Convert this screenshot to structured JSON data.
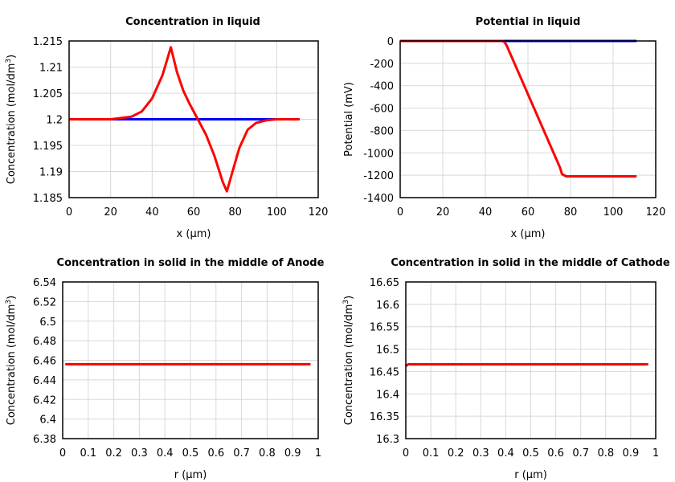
{
  "chart_data": [
    {
      "type": "line",
      "title": "Concentration in liquid",
      "xlabel": "x (µm)",
      "ylabel": "Concentration (mol/dm3)",
      "ylabel_main": "Concentration (mol/dm",
      "ylabel_sup": "3",
      "ylabel_end": ")",
      "xlim": [
        0,
        120
      ],
      "ylim": [
        1.185,
        1.215
      ],
      "xticks": [
        "0",
        "20",
        "40",
        "60",
        "80",
        "100",
        "120"
      ],
      "yticks": [
        "1.185",
        "1.19",
        "1.195",
        "1.2",
        "1.205",
        "1.21",
        "1.215"
      ],
      "grid": true,
      "series": [
        {
          "color": "#0000ff",
          "x": [
            0,
            111
          ],
          "y": [
            1.2,
            1.2
          ]
        },
        {
          "color": "#ff0000",
          "x": [
            0,
            20,
            30,
            35,
            40,
            45,
            49,
            52,
            55,
            58,
            62,
            66,
            70,
            74,
            76,
            78,
            82,
            86,
            90,
            95,
            100,
            111
          ],
          "y": [
            1.2,
            1.2,
            1.2005,
            1.2015,
            1.204,
            1.2085,
            1.2138,
            1.209,
            1.2055,
            1.203,
            1.2,
            1.197,
            1.193,
            1.188,
            1.1862,
            1.189,
            1.1945,
            1.198,
            1.1993,
            1.1998,
            1.2,
            1.2
          ]
        }
      ]
    },
    {
      "type": "line",
      "title": "Potential in liquid",
      "xlabel": "x (µm)",
      "ylabel_main": "Potential (mV)",
      "ylabel_sup": "",
      "ylabel_end": "",
      "xlim": [
        0,
        120
      ],
      "ylim": [
        -1400,
        0
      ],
      "xticks": [
        "0",
        "20",
        "40",
        "60",
        "80",
        "100",
        "120"
      ],
      "yticks": [
        "-1400",
        "-1200",
        "-1000",
        "-800",
        "-600",
        "-400",
        "-200",
        "0"
      ],
      "grid": true,
      "series": [
        {
          "color": "#0000ff",
          "x": [
            0,
            111
          ],
          "y": [
            0,
            0
          ]
        },
        {
          "color": "#ff0000",
          "x": [
            0,
            48,
            49,
            50,
            75,
            76,
            78,
            111
          ],
          "y": [
            0,
            0,
            -10,
            -40,
            -1130,
            -1190,
            -1210,
            -1210
          ]
        }
      ]
    },
    {
      "type": "line",
      "title": "Concentration in solid in the middle of Anode",
      "xlabel": "r (µm)",
      "ylabel_main": "Concentration (mol/dm",
      "ylabel_sup": "3",
      "ylabel_end": ")",
      "xlim": [
        0,
        1
      ],
      "ylim": [
        6.38,
        6.54
      ],
      "xticks": [
        "0",
        "0.1",
        "0.2",
        "0.3",
        "0.4",
        "0.5",
        "0.6",
        "0.7",
        "0.8",
        "0.9",
        "1"
      ],
      "yticks": [
        "6.38",
        "6.4",
        "6.42",
        "6.44",
        "6.46",
        "6.48",
        "6.5",
        "6.52",
        "6.54"
      ],
      "grid": true,
      "series": [
        {
          "color": "#ff0000",
          "x": [
            0.01,
            0.97
          ],
          "y": [
            6.456,
            6.456
          ]
        }
      ]
    },
    {
      "type": "line",
      "title": "Concentration in solid in the middle of Cathode",
      "xlabel": "r (µm)",
      "ylabel_main": "Concentration (mol/dm",
      "ylabel_sup": "3",
      "ylabel_end": ")",
      "xlim": [
        0,
        1
      ],
      "ylim": [
        16.3,
        16.65
      ],
      "xticks": [
        "0",
        "0.1",
        "0.2",
        "0.3",
        "0.4",
        "0.5",
        "0.6",
        "0.7",
        "0.8",
        "0.9",
        "1"
      ],
      "yticks": [
        "16.3",
        "16.35",
        "16.4",
        "16.45",
        "16.5",
        "16.55",
        "16.6",
        "16.65"
      ],
      "grid": true,
      "series": [
        {
          "color": "#ff0000",
          "x": [
            0,
            0.01,
            0.97
          ],
          "y": [
            16.462,
            16.466,
            16.466
          ]
        }
      ]
    }
  ]
}
